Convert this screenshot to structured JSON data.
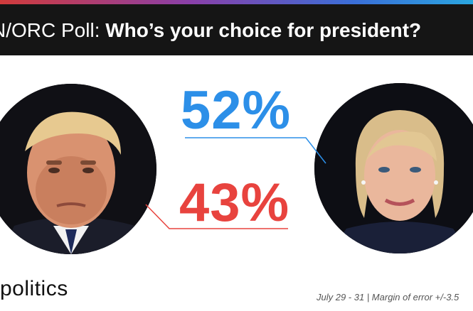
{
  "header": {
    "title_prefix": "N/ORC Poll: ",
    "title_question": "Who’s your choice for president?"
  },
  "chart_data": {
    "type": "table",
    "title": "N/ORC Poll: Who’s your choice for president?",
    "values": [
      "52%",
      "43%"
    ],
    "colors": [
      "#2c8fe8",
      "#e8433e"
    ]
  },
  "footer": {
    "logo": "politics",
    "note": "July 29 - 31 | Margin of error +/-3.5"
  },
  "colors": {
    "title_bar": "#151515",
    "blue": "#2c8fe8",
    "red": "#e8433e"
  }
}
